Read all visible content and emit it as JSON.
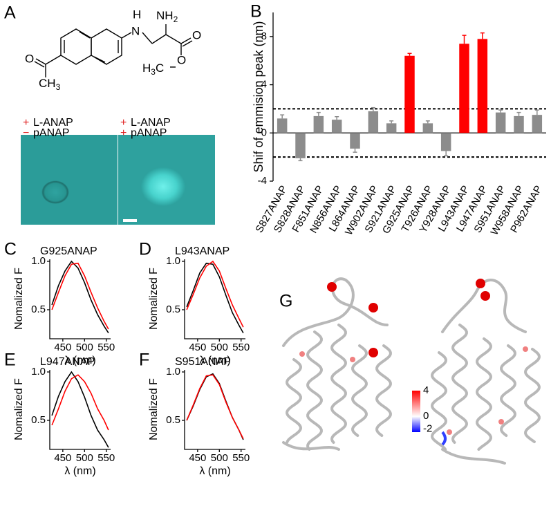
{
  "panel_labels": {
    "a": "A",
    "g": "G"
  },
  "structure": {
    "atoms": [
      "H",
      "N",
      "NH",
      "2",
      "O",
      "H",
      "3",
      "C",
      "O",
      "O",
      "CH",
      "3"
    ]
  },
  "images": [
    {
      "rows": [
        {
          "sign": "+",
          "text": "L-ANAP"
        },
        {
          "sign": "−",
          "text": "pANAP"
        }
      ]
    },
    {
      "rows": [
        {
          "sign": "+",
          "text": "L-ANAP"
        },
        {
          "sign": "+",
          "text": "pANAP"
        }
      ]
    }
  ],
  "colorbar": {
    "ticks": [
      4,
      0,
      -2
    ]
  },
  "chart_data": [
    {
      "type": "bar",
      "panel": "B",
      "ylabel": "Shif of emmision peak (nm)",
      "categories": [
        "S827ANAP",
        "S828ANAP",
        "F851ANAP",
        "N856ANAP",
        "L864ANAP",
        "W902ANAP",
        "S921ANAP",
        "G925ANAP",
        "T926ANAP",
        "Y928ANAP",
        "L943ANAP",
        "L947ANAP",
        "S951ANAP",
        "W958ANAP",
        "P962ANAP"
      ],
      "values": [
        1.2,
        -2.1,
        1.4,
        1.1,
        -1.3,
        1.8,
        0.8,
        6.4,
        0.8,
        -1.5,
        7.4,
        7.8,
        1.7,
        1.4,
        1.5
      ],
      "errors": [
        0.3,
        0.2,
        0.3,
        0.25,
        0.3,
        0.3,
        0.2,
        0.2,
        0.2,
        0.4,
        0.7,
        0.5,
        0.2,
        0.3,
        0.4
      ],
      "colors": [
        "#8c8c8c",
        "#8c8c8c",
        "#8c8c8c",
        "#8c8c8c",
        "#8c8c8c",
        "#8c8c8c",
        "#8c8c8c",
        "#ff0000",
        "#8c8c8c",
        "#8c8c8c",
        "#ff0000",
        "#ff0000",
        "#8c8c8c",
        "#8c8c8c",
        "#8c8c8c"
      ],
      "ylim": [
        -4,
        10
      ],
      "yticks": [
        -4,
        0,
        4,
        8
      ],
      "threshold_lines": [
        2,
        -2
      ]
    },
    {
      "type": "line",
      "panel": "C",
      "title": "G925ANAP",
      "xlabel": "λ (nm)",
      "ylabel": "Nomalized F",
      "x": [
        425,
        440,
        455,
        470,
        485,
        500,
        515,
        530,
        545,
        555
      ],
      "series": [
        {
          "color": "#000000",
          "values": [
            0.55,
            0.75,
            0.9,
            1.0,
            0.93,
            0.78,
            0.6,
            0.45,
            0.33,
            0.26
          ]
        },
        {
          "color": "#ff0000",
          "values": [
            0.5,
            0.68,
            0.85,
            0.97,
            0.98,
            0.85,
            0.68,
            0.52,
            0.38,
            0.3
          ]
        }
      ],
      "xlim": [
        420,
        560
      ],
      "xticks": [
        450,
        500,
        550
      ],
      "ylim": [
        0.2,
        1.0
      ],
      "yticks": [
        0.5,
        {
          "value": 1,
          "label": "1.0"
        }
      ]
    },
    {
      "type": "line",
      "panel": "D",
      "title": "L943ANAP",
      "xlabel": "λ (nm)",
      "ylabel": "Nomalized F",
      "x": [
        425,
        440,
        455,
        470,
        485,
        500,
        515,
        530,
        545,
        555
      ],
      "series": [
        {
          "color": "#000000",
          "values": [
            0.53,
            0.7,
            0.88,
            0.98,
            0.97,
            0.84,
            0.65,
            0.47,
            0.34,
            0.26
          ]
        },
        {
          "color": "#ff0000",
          "values": [
            0.5,
            0.66,
            0.83,
            0.95,
            1.0,
            0.9,
            0.72,
            0.55,
            0.41,
            0.32
          ]
        }
      ],
      "xlim": [
        420,
        560
      ],
      "xticks": [
        450,
        500,
        550
      ],
      "ylim": [
        0.2,
        1.0
      ],
      "yticks": [
        0.5,
        {
          "value": 1,
          "label": "1.0"
        }
      ]
    },
    {
      "type": "line",
      "panel": "E",
      "title": "L947ANAP",
      "xlabel": "λ (nm)",
      "ylabel": "Nomalized F",
      "x": [
        425,
        440,
        455,
        470,
        485,
        500,
        515,
        530,
        545,
        555
      ],
      "series": [
        {
          "color": "#000000",
          "values": [
            0.55,
            0.75,
            0.9,
            1.0,
            0.9,
            0.74,
            0.55,
            0.4,
            0.3,
            0.22
          ]
        },
        {
          "color": "#ff0000",
          "values": [
            0.45,
            0.62,
            0.8,
            0.93,
            0.97,
            0.9,
            0.78,
            0.62,
            0.5,
            0.4
          ]
        }
      ],
      "xlim": [
        420,
        560
      ],
      "xticks": [
        450,
        500,
        550
      ],
      "ylim": [
        0.2,
        1.0
      ],
      "yticks": [
        0.5,
        {
          "value": 1,
          "label": "1.0"
        }
      ]
    },
    {
      "type": "line",
      "panel": "F",
      "title": "S951ANAP",
      "xlabel": "λ (nm)",
      "ylabel": "Nomalized F",
      "x": [
        425,
        440,
        455,
        470,
        485,
        500,
        515,
        530,
        545,
        555
      ],
      "series": [
        {
          "color": "#000000",
          "values": [
            0.5,
            0.65,
            0.82,
            0.95,
            0.98,
            0.88,
            0.7,
            0.53,
            0.4,
            0.3
          ]
        },
        {
          "color": "#ff0000",
          "values": [
            0.5,
            0.66,
            0.83,
            0.96,
            0.97,
            0.87,
            0.69,
            0.53,
            0.4,
            0.31
          ]
        }
      ],
      "xlim": [
        420,
        560
      ],
      "xticks": [
        450,
        500,
        550
      ],
      "ylim": [
        0.2,
        1.0
      ],
      "yticks": [
        0.5,
        {
          "value": 1,
          "label": "1.0"
        }
      ]
    }
  ]
}
